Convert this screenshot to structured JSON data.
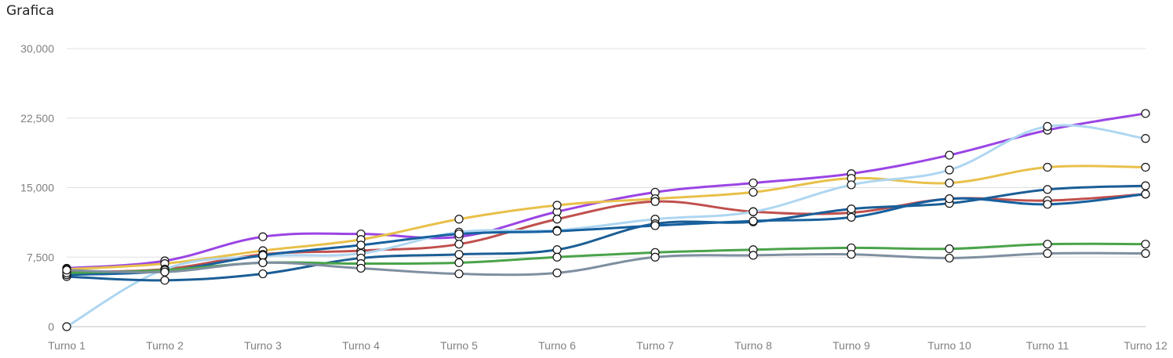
{
  "title": "Grafica",
  "chart_data": {
    "type": "line",
    "categories": [
      "Turno 1",
      "Turno 2",
      "Turno 3",
      "Turno 4",
      "Turno 5",
      "Turno 6",
      "Turno 7",
      "Turno 8",
      "Turno 9",
      "Turno 10",
      "Turno 11",
      "Turno 12"
    ],
    "y_ticks": [
      "0",
      "7,500",
      "15,000",
      "22,500",
      "30,000"
    ],
    "ylim": [
      0,
      30000
    ],
    "grid": true,
    "series": [
      {
        "color": "#9b45e4",
        "values": [
          6300,
          7100,
          9700,
          10000,
          9700,
          12400,
          14500,
          15500,
          16500,
          18500,
          21200,
          23000
        ]
      },
      {
        "color": "#e8c04a",
        "values": [
          6200,
          6800,
          8200,
          9400,
          11600,
          13100,
          13800,
          14500,
          16000,
          15500,
          17200,
          17200
        ]
      },
      {
        "color": "#c0504d",
        "values": [
          5900,
          6200,
          7800,
          8200,
          8900,
          11600,
          13500,
          12400,
          12300,
          13800,
          13600,
          14300
        ]
      },
      {
        "color": "#aed6f1",
        "values": [
          0,
          6200,
          7600,
          7900,
          10200,
          10400,
          11600,
          12400,
          15300,
          16900,
          21600,
          20300
        ]
      },
      {
        "color": "#1b5e96",
        "values": [
          5400,
          5000,
          5700,
          7400,
          7800,
          8300,
          11100,
          11300,
          12700,
          13300,
          14800,
          15200
        ]
      },
      {
        "color": "#17609e",
        "values": [
          5600,
          6000,
          7700,
          8800,
          10000,
          10300,
          10900,
          11400,
          11800,
          13800,
          13200,
          14300
        ]
      },
      {
        "color": "#4aa34a",
        "values": [
          5800,
          6100,
          6900,
          6800,
          6900,
          7500,
          8000,
          8300,
          8500,
          8400,
          8900,
          8900
        ]
      },
      {
        "color": "#7f8fa0",
        "values": [
          6100,
          5900,
          6900,
          6300,
          5700,
          5800,
          7500,
          7700,
          7800,
          7400,
          7900,
          7900
        ]
      }
    ]
  }
}
